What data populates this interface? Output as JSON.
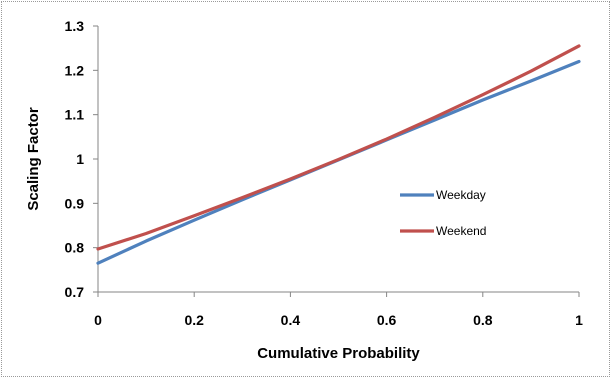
{
  "chart_data": {
    "type": "line",
    "xlabel": "Cumulative Probability",
    "ylabel": "Scaling Factor",
    "xlim": [
      0,
      1
    ],
    "ylim": [
      0.7,
      1.3
    ],
    "x_ticks": [
      0,
      0.2,
      0.4,
      0.6,
      0.8,
      1
    ],
    "x_tick_labels": [
      "0",
      "0.2",
      "0.4",
      "0.6",
      "0.8",
      "1"
    ],
    "y_ticks": [
      0.7,
      0.8,
      0.9,
      1.0,
      1.1,
      1.2,
      1.3
    ],
    "y_tick_labels": [
      "0.7",
      "0.8",
      "0.9",
      "1",
      "1.1",
      "1.2",
      "1.3"
    ],
    "grid": false,
    "legend_position": "right-middle",
    "series": [
      {
        "name": "Weekday",
        "color": "#4f81bd",
        "x": [
          0,
          0.1,
          0.2,
          0.3,
          0.4,
          0.5,
          0.6,
          0.7,
          0.8,
          0.9,
          1.0
        ],
        "y": [
          0.765,
          0.815,
          0.862,
          0.908,
          0.953,
          0.998,
          1.043,
          1.088,
          1.133,
          1.176,
          1.22
        ]
      },
      {
        "name": "Weekend",
        "color": "#c0504d",
        "x": [
          0,
          0.1,
          0.2,
          0.3,
          0.4,
          0.5,
          0.6,
          0.7,
          0.8,
          0.9,
          1.0
        ],
        "y": [
          0.797,
          0.832,
          0.872,
          0.913,
          0.955,
          0.999,
          1.045,
          1.094,
          1.145,
          1.198,
          1.255
        ]
      }
    ]
  }
}
